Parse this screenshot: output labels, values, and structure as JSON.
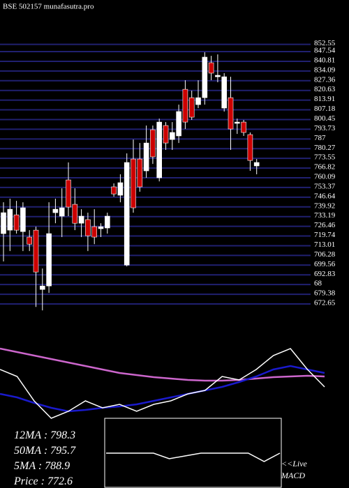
{
  "chart_data": [
    {
      "type": "candlestick",
      "title": "BSE 502157 munafasutra.pro",
      "ylim": [
        668.3,
        854.31
      ],
      "yticks": [
        852.55,
        847.54,
        840.81,
        834.09,
        827.36,
        820.63,
        813.91,
        807.18,
        800.45,
        793.73,
        787,
        780.27,
        773.55,
        766.82,
        760.09,
        753.37,
        746.64,
        739.92,
        733.19,
        726.46,
        719.74,
        713.01,
        706.28,
        699.56,
        692.83,
        {
          "value": 686.11,
          "label": "68"
        },
        679.38,
        672.65
      ],
      "grid": true,
      "up_color": "#ffffff",
      "down_color": "#cc0000",
      "grid_color": "#202070",
      "open": [
        721.4,
        723.8,
        734.4,
        722.8,
        719.0,
        723.8,
        682.7,
        685.1,
        735.9,
        733.5,
        758.6,
        741.7,
        728.6,
        731.1,
        726.2,
        724.8,
        725.3,
        753.8,
        748.0,
        699.6,
        773.1,
        773.1,
        764.9,
        793.4,
        760.1,
        796.3,
        786.6,
        789.1,
        821.4,
        815.6,
        810.8,
        815.6,
        839.8,
        830.1,
        808.4,
        815.6,
        797.8,
        798.7,
        790.0,
        768.3
      ],
      "high": [
        743.1,
        745.6,
        744.1,
        743.1,
        723.8,
        726.2,
        697.2,
        743.1,
        745.6,
        752.8,
        770.7,
        752.8,
        738.3,
        735.9,
        738.3,
        728.6,
        735.9,
        756.2,
        762.5,
        777.0,
        786.6,
        784.2,
        796.3,
        796.3,
        801.1,
        798.7,
        798.7,
        810.8,
        827.7,
        820.5,
        827.7,
        847.1,
        844.6,
        845.6,
        832.6,
        830.1,
        801.1,
        800.2,
        791.5,
        773.1
      ],
      "low": [
        702.1,
        709.3,
        721.4,
        709.3,
        709.3,
        670.6,
        668.2,
        680.3,
        728.6,
        719.0,
        733.5,
        723.8,
        719.0,
        709.3,
        714.1,
        719.0,
        721.4,
        747.0,
        743.1,
        698.7,
        735.9,
        750.4,
        760.1,
        769.7,
        757.6,
        779.4,
        779.4,
        784.2,
        793.9,
        800.2,
        808.4,
        810.8,
        827.7,
        826.3,
        806.0,
        779.4,
        790.5,
        789.1,
        764.9,
        762.5
      ],
      "close": [
        735.9,
        738.3,
        723.8,
        739.3,
        714.1,
        694.8,
        685.1,
        721.4,
        738.3,
        739.3,
        739.8,
        728.6,
        733.5,
        719.9,
        719.0,
        726.2,
        733.5,
        748.9,
        756.7,
        770.7,
        739.3,
        753.8,
        784.2,
        774.6,
        798.7,
        784.2,
        791.5,
        806.0,
        798.7,
        802.1,
        815.6,
        843.7,
        832.6,
        831.1,
        830.1,
        793.9,
        798.7,
        791.5,
        772.1,
        770.7
      ]
    },
    {
      "type": "line",
      "ylim": [
        -10,
        110
      ],
      "series": [
        {
          "color": "#cc66cc",
          "values": [
            100,
            95,
            90,
            85,
            80,
            75,
            70,
            65,
            62,
            59,
            57,
            55,
            54,
            54,
            55,
            57,
            59,
            60,
            61,
            60
          ]
        },
        {
          "color": "#1a1acc",
          "values": [
            35,
            30,
            22,
            15,
            10,
            12,
            15,
            17,
            20,
            25,
            30,
            35,
            40,
            45,
            52,
            60,
            70,
            75,
            70,
            65
          ]
        },
        {
          "color": "#ffffff",
          "values": [
            70,
            60,
            25,
            0,
            10,
            25,
            15,
            20,
            10,
            20,
            25,
            35,
            40,
            60,
            55,
            70,
            90,
            100,
            70,
            45
          ]
        }
      ],
      "readouts": [
        {
          "label": "12MA :",
          "value": 798.3
        },
        {
          "label": "50MA :",
          "value": 795.7
        },
        {
          "label": "5MA :",
          "value": 788.9
        },
        {
          "label": "Price   :",
          "value": 772.6
        }
      ]
    },
    {
      "type": "macd",
      "title": "MACD",
      "label": "<<Live",
      "ylim": [
        -10,
        10
      ],
      "series": [
        {
          "color": "#ffffff",
          "values": [
            0,
            0,
            0,
            0,
            -2,
            -1,
            0,
            0,
            0,
            0,
            -3,
            0
          ]
        }
      ]
    }
  ]
}
